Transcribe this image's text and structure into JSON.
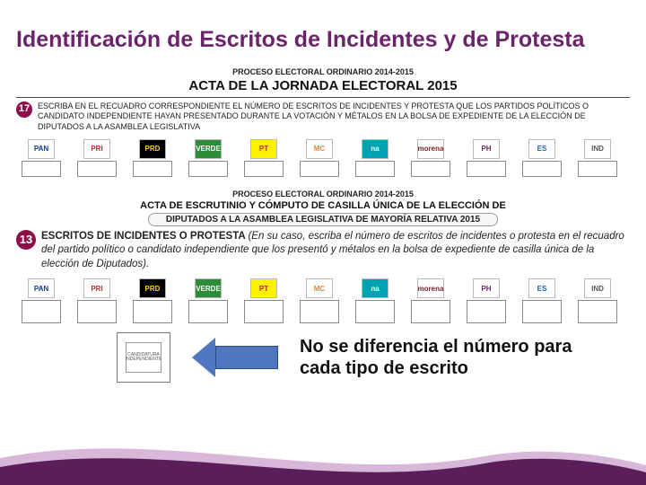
{
  "title": "Identificación de Escritos de Incidentes y de Protesta",
  "block1": {
    "proc": "PROCESO ELECTORAL ORDINARIO 2014-2015",
    "mainTitle": "ACTA DE LA JORNADA ELECTORAL 2015",
    "num": "17",
    "instr": "ESCRIBA EN EL RECUADRO CORRESPONDIENTE EL NÚMERO DE ESCRITOS DE INCIDENTES Y PROTESTA QUE LOS PARTIDOS POLÍTICOS O CANDIDATO INDEPENDIENTE HAYAN PRESENTADO DURANTE LA VOTACIÓN Y MÉTALOS EN LA BOLSA DE EXPEDIENTE DE LA ELECCIÓN DE DIPUTADOS A LA ASAMBLEA LEGISLATIVA"
  },
  "block2": {
    "proc": "PROCESO ELECTORAL ORDINARIO 2014-2015",
    "mainTitle": "ACTA DE ESCRUTINIO Y CÓMPUTO DE CASILLA ÚNICA DE LA ELECCIÓN DE",
    "pill": "DIPUTADOS A LA ASAMBLEA LEGISLATIVA DE MAYORÍA RELATIVA 2015",
    "num": "13",
    "lead": "ESCRITOS DE INCIDENTES O PROTESTA ",
    "body": "(En su caso, escriba el número de escritos de incidentes o protesta en el recuadro del partido político o candidato independiente que los presentó y métalos en la bolsa de expediente de casilla única de la elección de Diputados)."
  },
  "parties": [
    {
      "name": "PAN",
      "label": "PAN",
      "color": "#0b3c8c",
      "bg": "#ffffff"
    },
    {
      "name": "PRI",
      "label": "PRI",
      "color": "#c1272d",
      "bg": "#ffffff"
    },
    {
      "name": "PRD",
      "label": "PRD",
      "color": "#ffd400",
      "bg": "#000000"
    },
    {
      "name": "PVEM",
      "label": "VERDE",
      "color": "#ffffff",
      "bg": "#2e8b3a"
    },
    {
      "name": "PT",
      "label": "PT",
      "color": "#c1272d",
      "bg": "#fff200"
    },
    {
      "name": "MC",
      "label": "MC",
      "color": "#f58220",
      "bg": "#ffffff"
    },
    {
      "name": "NA",
      "label": "na",
      "color": "#ffffff",
      "bg": "#00a1b0"
    },
    {
      "name": "MORENA",
      "label": "morena",
      "color": "#7a1f1f",
      "bg": "#ffffff"
    },
    {
      "name": "PH",
      "label": "PH",
      "color": "#6b246b",
      "bg": "#ffffff"
    },
    {
      "name": "ES",
      "label": "ES",
      "color": "#1f5fae",
      "bg": "#ffffff"
    },
    {
      "name": "IND",
      "label": "IND",
      "color": "#555555",
      "bg": "#ffffff"
    }
  ],
  "indepLabel": "CANDIDATURA INDEPENDIENTE",
  "note": "No se diferencia el número para cada tipo de escrito",
  "colors": {
    "titlePurple": "#6b246b",
    "circleMagenta": "#8e0d4a",
    "arrowBlue": "#4f76bf",
    "waveDark": "#5a1e5a",
    "waveLight": "#d8b7d8"
  }
}
